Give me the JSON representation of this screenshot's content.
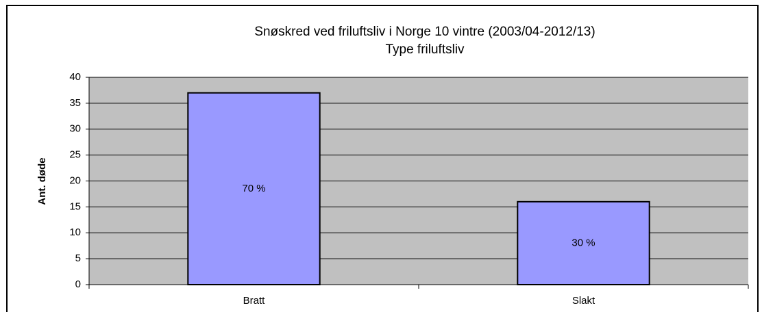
{
  "chart_data": {
    "type": "bar",
    "title": "Snøskred ved friluftsliv i Norge 10 vintre (2003/04-2012/13)",
    "subtitle": "Type friluftsliv",
    "y_label": "Ant. døde",
    "categories": [
      "Bratt",
      "Slakt"
    ],
    "values": [
      37,
      16
    ],
    "annotations": [
      "70 %",
      "30 %"
    ],
    "color": "#9999ff",
    "ylim": [
      0,
      40
    ],
    "yticks": [
      0,
      5,
      10,
      15,
      20,
      25,
      30,
      35,
      40
    ],
    "grid": true
  }
}
